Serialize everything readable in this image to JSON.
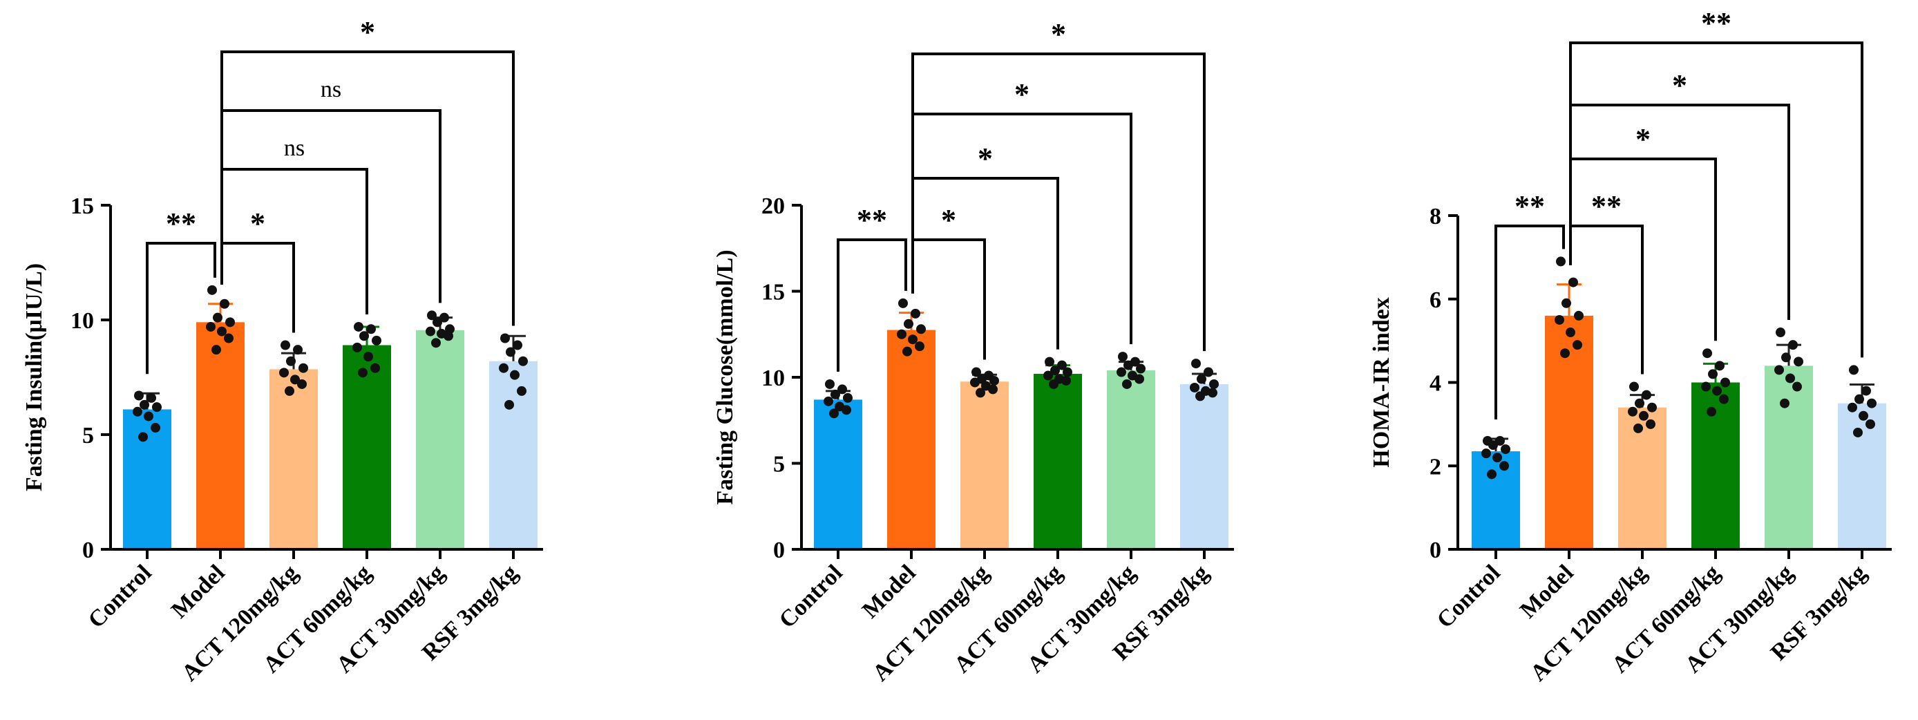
{
  "colors": {
    "Control": "#0aa0f0",
    "Model": "#ff6a10",
    "ACT 120mg/kg": "#ffbb80",
    "ACT 60mg/kg": "#048004",
    "ACT 30mg/kg": "#98e0aa",
    "RSF 3mg/kg": "#c4def8",
    "axis": "#000000",
    "points": "#111111"
  },
  "chart_data": [
    {
      "type": "bar",
      "ylabel": "Fasting Insulin(μIU/L)",
      "ylim": [
        0,
        15
      ],
      "yticks": [
        0,
        5,
        10,
        15
      ],
      "categories": [
        "Control",
        "Model",
        "ACT 120mg/kg",
        "ACT 60mg/kg",
        "ACT 30mg/kg",
        "RSF 3mg/kg"
      ],
      "values": [
        6.1,
        9.9,
        7.85,
        8.9,
        9.55,
        8.2
      ],
      "errors": [
        0.7,
        0.8,
        0.7,
        0.8,
        0.55,
        1.1
      ],
      "points": [
        [
          6.7,
          6.6,
          6.3,
          6.2,
          6.0,
          5.8,
          5.3,
          4.9
        ],
        [
          11.3,
          10.7,
          10.1,
          9.9,
          9.7,
          9.5,
          9.2,
          8.7
        ],
        [
          8.9,
          8.7,
          8.2,
          7.9,
          7.7,
          7.4,
          7.2,
          6.9
        ],
        [
          9.7,
          9.6,
          9.3,
          9.1,
          8.8,
          8.4,
          7.9,
          7.7
        ],
        [
          10.2,
          10.1,
          9.9,
          9.6,
          9.5,
          9.4,
          9.3,
          9.0
        ],
        [
          9.2,
          8.9,
          8.6,
          8.2,
          7.9,
          7.6,
          6.9,
          6.3
        ]
      ],
      "comparisons": [
        {
          "from": "Control",
          "to": "Model",
          "label": "**"
        },
        {
          "from": "Model",
          "to": "ACT 120mg/kg",
          "label": "*"
        },
        {
          "from": "Model",
          "to": "ACT 60mg/kg",
          "label": "ns"
        },
        {
          "from": "Model",
          "to": "ACT 30mg/kg",
          "label": "ns"
        },
        {
          "from": "Model",
          "to": "RSF 3mg/kg",
          "label": "*"
        }
      ]
    },
    {
      "type": "bar",
      "ylabel": "Fasting Glucose(mmol/L)",
      "ylim": [
        0,
        20
      ],
      "yticks": [
        0,
        5,
        10,
        15,
        20
      ],
      "categories": [
        "Control",
        "Model",
        "ACT 120mg/kg",
        "ACT 60mg/kg",
        "ACT 30mg/kg",
        "RSF 3mg/kg"
      ],
      "values": [
        8.7,
        12.75,
        9.75,
        10.2,
        10.4,
        9.6
      ],
      "errors": [
        0.5,
        1.0,
        0.4,
        0.5,
        0.5,
        0.6
      ],
      "points": [
        [
          9.6,
          9.3,
          9.0,
          8.8,
          8.6,
          8.3,
          8.1,
          7.9
        ],
        [
          14.3,
          13.7,
          13.1,
          12.8,
          12.5,
          12.2,
          11.8,
          11.5
        ],
        [
          10.3,
          10.1,
          9.9,
          9.8,
          9.7,
          9.5,
          9.3,
          9.1
        ],
        [
          10.9,
          10.7,
          10.4,
          10.3,
          10.1,
          9.9,
          9.8,
          9.6
        ],
        [
          11.2,
          10.9,
          10.7,
          10.5,
          10.3,
          10.1,
          9.9,
          9.6
        ],
        [
          10.8,
          10.3,
          9.9,
          9.6,
          9.4,
          9.2,
          9.1,
          8.9
        ]
      ],
      "comparisons": [
        {
          "from": "Control",
          "to": "Model",
          "label": "**"
        },
        {
          "from": "Model",
          "to": "ACT 120mg/kg",
          "label": "*"
        },
        {
          "from": "Model",
          "to": "ACT 60mg/kg",
          "label": "*"
        },
        {
          "from": "Model",
          "to": "ACT 30mg/kg",
          "label": "*"
        },
        {
          "from": "Model",
          "to": "RSF 3mg/kg",
          "label": "*"
        }
      ]
    },
    {
      "type": "bar",
      "ylabel": "HOMA-IR index",
      "ylim": [
        0,
        8
      ],
      "yticks": [
        0,
        2,
        4,
        6,
        8
      ],
      "categories": [
        "Control",
        "Model",
        "ACT 120mg/kg",
        "ACT 60mg/kg",
        "ACT 30mg/kg",
        "RSF 3mg/kg"
      ],
      "values": [
        2.35,
        5.6,
        3.4,
        4.0,
        4.4,
        3.5
      ],
      "errors": [
        0.3,
        0.75,
        0.3,
        0.45,
        0.5,
        0.45
      ],
      "points": [
        [
          2.6,
          2.6,
          2.5,
          2.4,
          2.3,
          2.2,
          2.0,
          1.8
        ],
        [
          6.9,
          6.4,
          5.9,
          5.6,
          5.5,
          5.2,
          4.9,
          4.7
        ],
        [
          3.9,
          3.7,
          3.5,
          3.4,
          3.3,
          3.2,
          3.0,
          2.9
        ],
        [
          4.7,
          4.4,
          4.2,
          4.0,
          3.9,
          3.8,
          3.6,
          3.3
        ],
        [
          5.2,
          4.9,
          4.6,
          4.5,
          4.3,
          4.1,
          3.9,
          3.5
        ],
        [
          4.3,
          3.8,
          3.6,
          3.5,
          3.4,
          3.2,
          3.0,
          2.8
        ]
      ],
      "comparisons": [
        {
          "from": "Control",
          "to": "Model",
          "label": "**"
        },
        {
          "from": "Model",
          "to": "ACT 120mg/kg",
          "label": "**"
        },
        {
          "from": "Model",
          "to": "ACT 60mg/kg",
          "label": "*"
        },
        {
          "from": "Model",
          "to": "ACT 30mg/kg",
          "label": "*"
        },
        {
          "from": "Model",
          "to": "RSF 3mg/kg",
          "label": "**"
        }
      ]
    }
  ]
}
